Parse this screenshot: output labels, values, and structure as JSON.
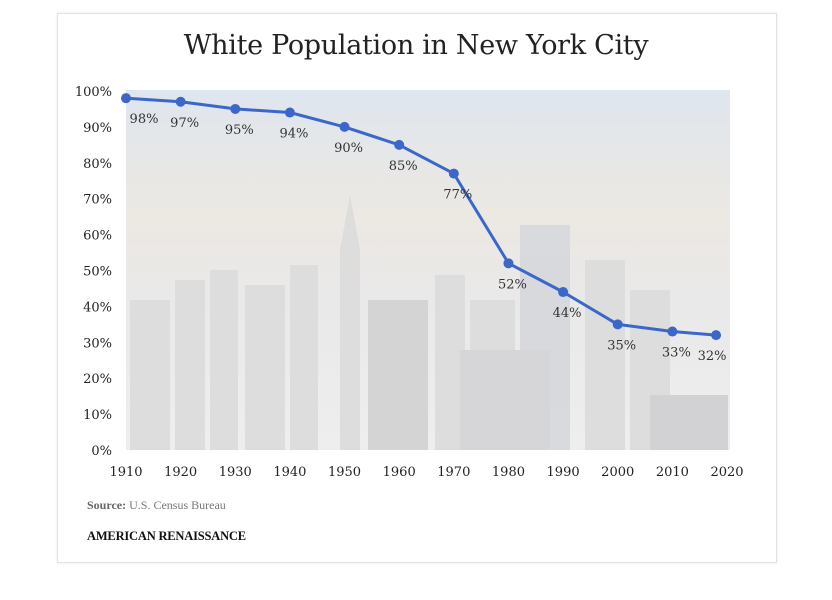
{
  "chart_data": {
    "type": "line",
    "title": "White Population in New York City",
    "x": [
      1910,
      1920,
      1930,
      1940,
      1950,
      1960,
      1970,
      1980,
      1990,
      2000,
      2010,
      2018
    ],
    "series": [
      {
        "values": [
          98,
          97,
          95,
          94,
          90,
          85,
          77,
          52,
          44,
          35,
          33,
          32
        ],
        "labels": [
          "98%",
          "97%",
          "95%",
          "94%",
          "90%",
          "85%",
          "77%",
          "52%",
          "44%",
          "35%",
          "33%",
          "32%"
        ],
        "color": "#3a67c9"
      }
    ],
    "x_ticks": [
      "1910",
      "1920",
      "1930",
      "1940",
      "1950",
      "1960",
      "1970",
      "1980",
      "1990",
      "2000",
      "2010",
      "2020"
    ],
    "y_ticks": [
      "0%",
      "10%",
      "20%",
      "30%",
      "40%",
      "50%",
      "60%",
      "70%",
      "80%",
      "90%",
      "100%"
    ],
    "xlim": [
      1910,
      2020
    ],
    "ylim": [
      0,
      100
    ],
    "grid": false,
    "background": "faded New York City skyline photograph"
  },
  "footer": {
    "source_label": "Source:",
    "source_text": "U.S. Census Bureau",
    "brand": "AMERICAN RENAISSANCE"
  }
}
